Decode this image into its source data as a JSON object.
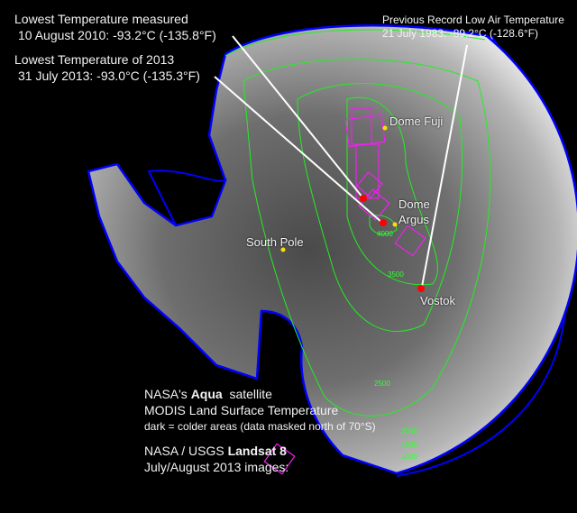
{
  "annotations": {
    "lowest_measured": {
      "title": "Lowest Temperature measured",
      "value": "10 August 2010: -93.2°C (-135.8°F)"
    },
    "lowest_2013": {
      "title": "Lowest Temperature of 2013",
      "value": "31 July 2013: -93.0°C (-135.3°F)"
    },
    "previous_record": {
      "title": "Previous Record Low Air Temperature",
      "value": "21 July 1983: -89.2°C (-128.6°F)"
    }
  },
  "places": {
    "dome_fuji": "Dome Fuji",
    "dome_argus": "Dome\nArgus",
    "south_pole": "South Pole",
    "vostok": "Vostok"
  },
  "contour_labels": [
    "4000",
    "3500",
    "2500",
    "2000",
    "1500",
    "1000"
  ],
  "legend": {
    "aqua_prefix": "NASA's ",
    "aqua_bold": "Aqua",
    "aqua_suffix": "  satellite",
    "modis": "MODIS Land Surface Temperature",
    "modis_note": "dark = colder areas (data masked north of 70°S)",
    "landsat_prefix": "NASA / USGS ",
    "landsat_bold": "Landsat 8",
    "landsat_note": "July/August 2013 images:"
  },
  "colors": {
    "coastline": "#0000ff",
    "contours": "#22ee22",
    "landsat_footprints": "#ee22ee",
    "record_markers": "#ff0000",
    "station_markers": "#ffdd00"
  }
}
